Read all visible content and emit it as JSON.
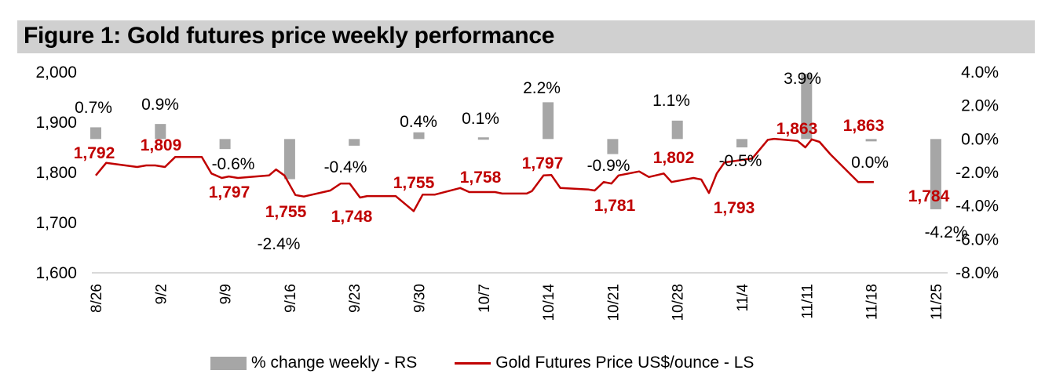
{
  "title": "Figure 1: Gold futures price weekly performance",
  "colors": {
    "bar": "#a6a6a6",
    "line": "#c00000",
    "title_bg": "#d0d0d0",
    "axis_line": "#d9d9d9"
  },
  "chart_data": {
    "type": "bar+line",
    "title": "Figure 1: Gold futures price weekly performance",
    "categories": [
      "8/26",
      "9/2",
      "9/9",
      "9/16",
      "9/23",
      "9/30",
      "10/7",
      "10/14",
      "10/21",
      "10/28",
      "11/4",
      "11/11",
      "11/18",
      "11/25"
    ],
    "left_axis": {
      "label": "Gold Futures Price US$/ounce",
      "ylim": [
        1600,
        2000
      ],
      "ticks": [
        "1,600",
        "1,700",
        "1,800",
        "1,900",
        "2,000"
      ],
      "tick_values": [
        1600,
        1700,
        1800,
        1900,
        2000
      ]
    },
    "right_axis": {
      "label": "% change weekly",
      "ylim": [
        -8.0,
        4.0
      ],
      "ticks": [
        "-8.0%",
        "-6.0%",
        "-4.0%",
        "-2.0%",
        "0.0%",
        "2.0%",
        "4.0%"
      ],
      "tick_values": [
        -8,
        -6,
        -4,
        -2,
        0,
        2,
        4
      ]
    },
    "series": [
      {
        "name": "% change weekly - RS",
        "type": "bar",
        "axis": "right",
        "values": [
          0.7,
          0.9,
          -0.6,
          -2.4,
          -0.4,
          0.4,
          0.1,
          2.2,
          -0.9,
          1.1,
          -0.5,
          3.9,
          0.0,
          -4.2
        ],
        "labels": [
          "0.7%",
          "0.9%",
          "-0.6%",
          "-2.4%",
          "-0.4%",
          "0.4%",
          "0.1%",
          "2.2%",
          "-0.9%",
          "1.1%",
          "-0.5%",
          "3.9%",
          "0.0%",
          "-4.2%"
        ]
      },
      {
        "name": "Gold Futures Price US$/ounce - LS",
        "type": "line",
        "axis": "left",
        "labels": [
          "1,792",
          "1,809",
          "1,797",
          "1,755",
          "1,748",
          "1,755",
          "1,758",
          "1,797",
          "1,781",
          "1,802",
          "1,793",
          "1,863",
          "1,863",
          "1,784"
        ],
        "points": [
          [
            0.0,
            1794
          ],
          [
            0.16,
            1819
          ],
          [
            0.64,
            1811
          ],
          [
            0.78,
            1814
          ],
          [
            0.92,
            1814
          ],
          [
            1.07,
            1811
          ],
          [
            1.23,
            1831
          ],
          [
            1.64,
            1831
          ],
          [
            1.79,
            1798
          ],
          [
            1.95,
            1789
          ],
          [
            2.06,
            1792
          ],
          [
            2.2,
            1789
          ],
          [
            2.68,
            1794
          ],
          [
            2.79,
            1806
          ],
          [
            2.92,
            1794
          ],
          [
            3.09,
            1755
          ],
          [
            3.22,
            1752
          ],
          [
            3.63,
            1764
          ],
          [
            3.79,
            1778
          ],
          [
            3.93,
            1778
          ],
          [
            4.09,
            1750
          ],
          [
            4.2,
            1753
          ],
          [
            4.64,
            1753
          ],
          [
            4.92,
            1723
          ],
          [
            5.06,
            1756
          ],
          [
            5.25,
            1756
          ],
          [
            5.64,
            1769
          ],
          [
            5.78,
            1761
          ],
          [
            6.18,
            1761
          ],
          [
            6.29,
            1758
          ],
          [
            6.67,
            1758
          ],
          [
            6.75,
            1763
          ],
          [
            6.93,
            1794
          ],
          [
            7.05,
            1795
          ],
          [
            7.19,
            1769
          ],
          [
            7.63,
            1766
          ],
          [
            7.72,
            1764
          ],
          [
            7.86,
            1781
          ],
          [
            7.98,
            1778
          ],
          [
            8.09,
            1794
          ],
          [
            8.41,
            1802
          ],
          [
            8.56,
            1791
          ],
          [
            8.79,
            1798
          ],
          [
            8.91,
            1781
          ],
          [
            9.25,
            1789
          ],
          [
            9.37,
            1786
          ],
          [
            9.49,
            1759
          ],
          [
            9.61,
            1798
          ],
          [
            9.73,
            1820
          ],
          [
            10.16,
            1828
          ],
          [
            10.4,
            1865
          ],
          [
            10.5,
            1867
          ],
          [
            10.86,
            1863
          ],
          [
            10.98,
            1850
          ],
          [
            11.08,
            1866
          ],
          [
            11.2,
            1861
          ],
          [
            11.37,
            1836
          ],
          [
            11.8,
            1781
          ],
          [
            12.04,
            1781
          ]
        ]
      }
    ],
    "legend": [
      "% change weekly - RS",
      "Gold Futures Price US$/ounce - LS"
    ],
    "legend_position": "bottom",
    "grid": false
  }
}
